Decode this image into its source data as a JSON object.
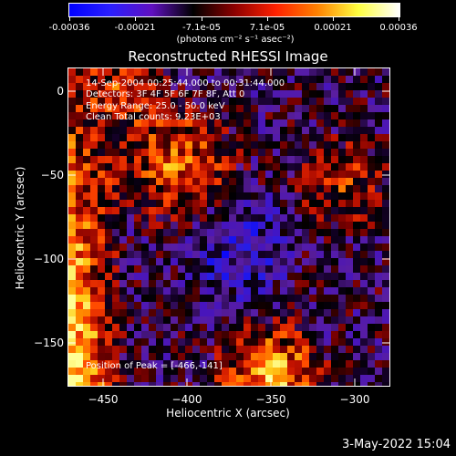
{
  "colorbar": {
    "tick_labels": [
      "-0.00036",
      "-0.00021",
      "-7.1e-05",
      "7.1e-05",
      "0.00021",
      "0.00036"
    ],
    "units": "(photons cm⁻² s⁻¹ asec⁻²)",
    "colors": [
      "#0000ff",
      "#2b1fff",
      "#6010c0",
      "#000000",
      "#8c0000",
      "#ff2000",
      "#ff8000",
      "#ffff40",
      "#ffffff"
    ]
  },
  "title": "Reconstructed RHESSI Image",
  "annotation": {
    "time_range": "14-Sep-2004 00:25:44.000 to 00:31:44.000",
    "detectors": "Detectors: 3F 4F 5F 6F 7F 8F, Att 0",
    "energy_range": "Energy Range: 25.0 - 50.0 keV",
    "clean_counts": "Clean     Total counts: 9.23E+03",
    "peak_position": "Position of Peak = [-466,-141]"
  },
  "chart_data": {
    "type": "heatmap",
    "title": "Reconstructed RHESSI Image",
    "xlabel": "Heliocentric X (arcsec)",
    "ylabel": "Heliocentric Y (arcsec)",
    "xlim": [
      -477,
      -286
    ],
    "ylim": [
      -178,
      10
    ],
    "x_ticks": [
      -450,
      -400,
      -350,
      -300
    ],
    "y_ticks": [
      0,
      -50,
      -100,
      -150
    ],
    "x_tick_labels": [
      "−450",
      "−400",
      "−350",
      "−300"
    ],
    "y_tick_labels": [
      "0",
      "−50",
      "−100",
      "−150"
    ],
    "colorbar_range": [
      -0.00036,
      0.00036
    ],
    "peak": [
      -466,
      -141
    ]
  },
  "footer": {
    "timestamp": "3-May-2022 15:04"
  }
}
